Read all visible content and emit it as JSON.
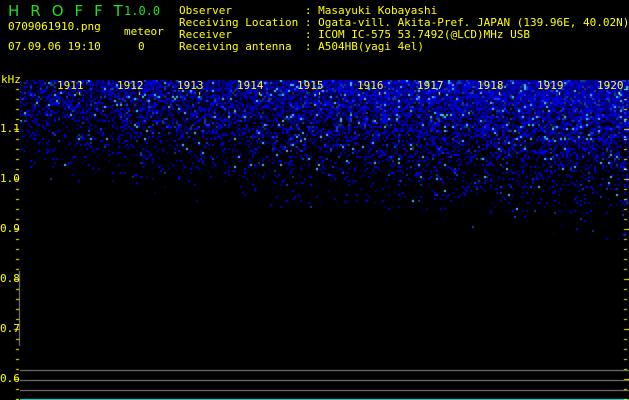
{
  "app": {
    "title": "HROFFT",
    "version": "1.0.0"
  },
  "file": {
    "name": "0709061910.png",
    "datetime": "07.09.06 19:10"
  },
  "meteor": {
    "label": "meteor",
    "count": "0"
  },
  "info": [
    {
      "key": "Observer           ",
      "value": "Masayuki Kobayashi"
    },
    {
      "key": "Receiving Location ",
      "value": "Ogata-vill. Akita-Pref. JAPAN (139.96E, 40.02N)"
    },
    {
      "key": "Receiver           ",
      "value": "ICOM IC-575 53.7492(@LCD)MHz USB"
    },
    {
      "key": "Receiving antenna  ",
      "value": "A504HB(yagi 4el)"
    }
  ],
  "axis": {
    "unit": "kHz",
    "freq_labels": [
      "1.1",
      "1.0",
      "0.9",
      "0.8",
      "0.7",
      "0.6"
    ],
    "time_labels": [
      "1911",
      "1912",
      "1913",
      "1914",
      "1915",
      "1916",
      "1917",
      "1918",
      "1919",
      "1920"
    ]
  },
  "colors": {
    "title": "#22dd22",
    "text": "#ffff00",
    "signal": "#2020ff",
    "baseline": "#22dddd"
  }
}
